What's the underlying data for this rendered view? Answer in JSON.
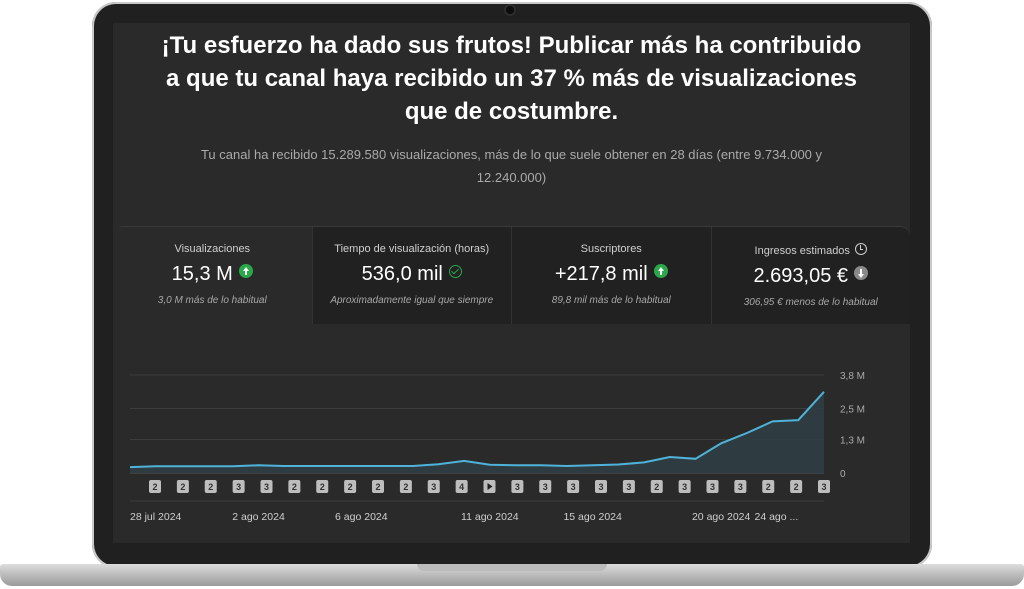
{
  "headline": {
    "line1": "¡Tu esfuerzo ha dado sus frutos! Publicar más ha contribuido",
    "line2": "a que tu canal haya recibido un 37 % más de visualizaciones",
    "line3": "que de costumbre."
  },
  "subtitle": {
    "line1": "Tu canal ha recibido 15.289.580 visualizaciones, más de lo que suele obtener en 28 días (entre 9.734.000 y",
    "line2": "12.240.000)"
  },
  "metrics": [
    {
      "label": "Visualizaciones",
      "value": "15,3 M",
      "status_icon": "arrow-up-icon",
      "note": "3,0 M más de lo habitual"
    },
    {
      "label": "Tiempo de visualización (horas)",
      "value": "536,0 mil",
      "status_icon": "check-circle-icon",
      "note": "Aproximadamente igual que siempre"
    },
    {
      "label": "Suscriptores",
      "value": "+217,8 mil",
      "status_icon": "arrow-up-icon",
      "note": "89,8 mil más de lo habitual"
    },
    {
      "label": "Ingresos estimados",
      "label_icon": "clock-icon",
      "value": "2.693,05 €",
      "status_icon": "arrow-down-icon",
      "note": "306,95 € menos de lo habitual"
    }
  ],
  "colors": {
    "accent_line": "#4fb3d9",
    "positive": "#2ba84a",
    "negative": "#8a8a8a"
  },
  "chart_data": {
    "type": "area",
    "title": "",
    "xlabel": "",
    "ylabel": "",
    "y_tick_labels": [
      "3,8 M",
      "2,5 M",
      "1,3 M",
      "0"
    ],
    "y_ticks": [
      3800000,
      2500000,
      1300000,
      0
    ],
    "ylim": [
      0,
      3800000
    ],
    "x_tick_labels": [
      "28 jul 2024",
      "2 ago 2024",
      "6 ago 2024",
      "11 ago 2024",
      "15 ago 2024",
      "20 ago 2024",
      "24 ago ..."
    ],
    "x_tick_index": [
      0,
      5,
      9,
      14,
      18,
      23,
      26
    ],
    "grid": true,
    "series": [
      {
        "values": [
          230000,
          260000,
          260000,
          260000,
          260000,
          300000,
          270000,
          270000,
          270000,
          270000,
          270000,
          270000,
          340000,
          470000,
          320000,
          300000,
          300000,
          270000,
          300000,
          330000,
          410000,
          620000,
          550000,
          1150000,
          1550000,
          2000000,
          2050000,
          3150000
        ]
      }
    ],
    "upload_markers": [
      "2",
      "2",
      "2",
      "3",
      "3",
      "2",
      "2",
      "2",
      "2",
      "2",
      "3",
      "4",
      "play",
      "3",
      "3",
      "3",
      "3",
      "3",
      "2",
      "3",
      "3",
      "3",
      "2",
      "2",
      "3"
    ]
  }
}
